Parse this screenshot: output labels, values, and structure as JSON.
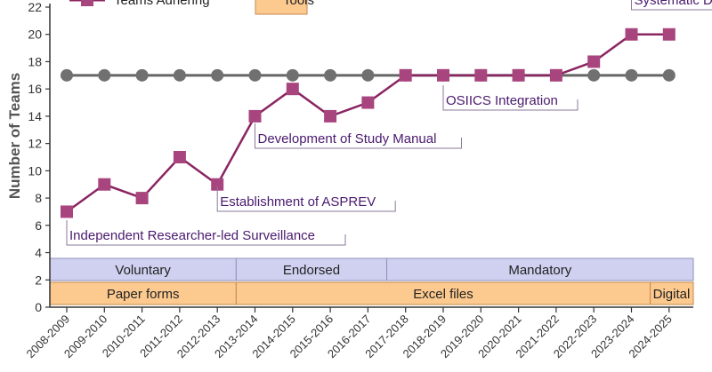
{
  "chart_data": {
    "type": "line",
    "ylabel": "Number of Teams",
    "xlabel": "",
    "ylim": [
      0,
      22
    ],
    "yticks": [
      "0",
      "2",
      "4",
      "6",
      "8",
      "10",
      "12",
      "14",
      "16",
      "18",
      "20",
      "22"
    ],
    "categories": [
      "2008-2009",
      "2009-2010",
      "2010-2011",
      "2011-2012",
      "2012-2013",
      "2013-2014",
      "2014-2015",
      "2015-2016",
      "2016-2017",
      "2017-2018",
      "2018-2019",
      "2019-2020",
      "2020-2021",
      "2021-2022",
      "2022-2023",
      "2023-2024",
      "2024-2025"
    ],
    "series": [
      {
        "name": "Teams Adhering",
        "values": [
          7,
          9,
          8,
          11,
          9,
          14,
          16,
          14,
          15,
          17,
          17,
          17,
          17,
          17,
          18,
          20,
          20
        ],
        "color": "#8b2561",
        "marker_color": "#a8457e"
      },
      {
        "name": "",
        "values": [
          17,
          17,
          17,
          17,
          17,
          17,
          17,
          17,
          17,
          17,
          17,
          17,
          17,
          17,
          17,
          17,
          17
        ],
        "color": "#666666",
        "marker_color": "#707070"
      }
    ],
    "legend": [
      {
        "label": "Teams Adhering",
        "kind": "series",
        "color": "#a8457e"
      },
      {
        "label": "Tools",
        "kind": "band",
        "color": "#fcc98f"
      }
    ],
    "annotations": [
      {
        "text": "Independent Researcher-led Surveillance",
        "category_index": 0
      },
      {
        "text": "Establishment of ASPREV",
        "category_index": 4
      },
      {
        "text": "Development of Study Manual",
        "category_index": 5
      },
      {
        "text": "OSIICS Integration",
        "category_index": 10
      },
      {
        "text": "Systematic Data Quality Control",
        "category_index": 15
      }
    ],
    "bands": [
      {
        "row": "policy",
        "color": "#d0d1f0",
        "segments": [
          {
            "label": "Voluntary",
            "from_index": 0,
            "to_index": 5
          },
          {
            "label": "Endorsed",
            "from_index": 5,
            "to_index": 9
          },
          {
            "label": "Mandatory",
            "from_index": 9,
            "to_index": 17
          }
        ]
      },
      {
        "row": "tools",
        "color": "#fcc98f",
        "segments": [
          {
            "label": "Paper forms",
            "from_index": 0,
            "to_index": 5
          },
          {
            "label": "Excel files",
            "from_index": 5,
            "to_index": 16
          },
          {
            "label": "Digital",
            "from_index": 16,
            "to_index": 17
          }
        ]
      }
    ],
    "grid": false
  }
}
